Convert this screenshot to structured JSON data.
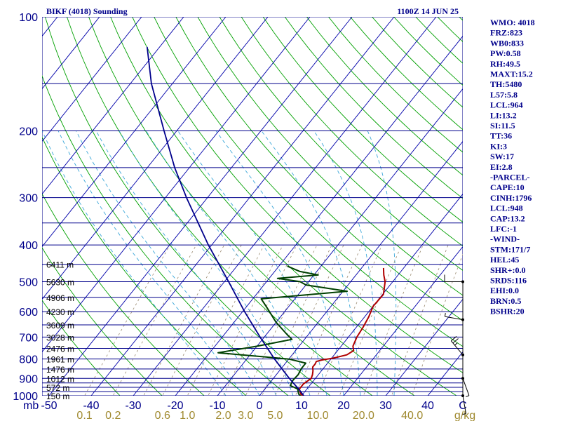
{
  "header": {
    "station": "BIKF (4018) Sounding",
    "time": "1100Z 14 JUN 25"
  },
  "indices": [
    "WMO: 4018",
    "FRZ:823",
    "WB0:833",
    "PW:0.58",
    "RH:49.5",
    "MAXT:15.2",
    "TH:5480",
    "L57:5.8",
    "LCL:964",
    "LI:13.2",
    "SI:11.5",
    "TT:36",
    "KI:3",
    "SW:17",
    "EI:2.8",
    "-PARCEL-",
    "CAPE:10",
    "CINH:1796",
    "LCL:948",
    "CAP:13.2",
    "LFC:-1",
    "-WIND-",
    "STM:171/7",
    "HEL:45",
    "SHR+:0.0",
    "SRDS:116",
    "EHI:0.0",
    "BRN:0.5",
    "BSHR:20"
  ],
  "colors": {
    "isobar": "#00008b",
    "isotherm": "#0000aa",
    "dry_adiabat": "#00a000",
    "moist_adiabat": "#3aa6d8",
    "mixing_ratio": "#9a8a70",
    "temperature": "#b00000",
    "dewpoint": "#004000",
    "parcel": "#00008b",
    "wind": "#000000",
    "text": "#00008b",
    "mix_label": "#a08a30"
  },
  "chart_data": {
    "type": "line",
    "title": "BIKF (4018) Sounding",
    "pressure_axis": {
      "unit_label": "mb",
      "range": [
        1000,
        100
      ],
      "ticks": [
        {
          "value": 100,
          "label": "100"
        },
        {
          "value": 200,
          "label": "200"
        },
        {
          "value": 300,
          "label": "300"
        },
        {
          "value": 400,
          "label": "400"
        },
        {
          "value": 500,
          "label": "500"
        },
        {
          "value": 600,
          "label": "600"
        },
        {
          "value": 700,
          "label": "700"
        },
        {
          "value": 800,
          "label": "800"
        },
        {
          "value": 900,
          "label": "900"
        },
        {
          "value": 1000,
          "label": "1000"
        }
      ],
      "isobars": [
        100,
        150,
        200,
        250,
        300,
        350,
        400,
        450,
        500,
        550,
        600,
        650,
        700,
        750,
        800,
        850,
        900,
        925,
        950,
        975,
        1000
      ]
    },
    "temperature_axis": {
      "ticks": [
        {
          "value": -50,
          "label": "-50"
        },
        {
          "value": -40,
          "label": "-40"
        },
        {
          "value": -30,
          "label": "-30"
        },
        {
          "value": -20,
          "label": "-20"
        },
        {
          "value": -10,
          "label": "-10"
        },
        {
          "value": 0,
          "label": "0"
        },
        {
          "value": 10,
          "label": "10"
        },
        {
          "value": 20,
          "label": "20"
        },
        {
          "value": 30,
          "label": "30"
        },
        {
          "value": 40,
          "label": "40"
        }
      ],
      "end_label": "C"
    },
    "mixing_ratio_axis": {
      "ticks": [
        {
          "value": 0.1,
          "label": "0.1"
        },
        {
          "value": 0.2,
          "label": "0.2"
        },
        {
          "value": 0.6,
          "label": "0.6"
        },
        {
          "value": 1.0,
          "label": "1.0"
        },
        {
          "value": 2.0,
          "label": "2.0"
        },
        {
          "value": 3.0,
          "label": "3.0"
        },
        {
          "value": 5.0,
          "label": "5.0"
        },
        {
          "value": 10.0,
          "label": "10.0"
        },
        {
          "value": 20.0,
          "label": "20.0"
        },
        {
          "value": 40.0,
          "label": "40.0"
        }
      ],
      "unit_label": "g/kg"
    },
    "height_labels": [
      {
        "pressure": 450,
        "label": "6411 m"
      },
      {
        "pressure": 500,
        "label": "5630 m"
      },
      {
        "pressure": 550,
        "label": "4906 m"
      },
      {
        "pressure": 600,
        "label": "4230 m"
      },
      {
        "pressure": 650,
        "label": "3609 m"
      },
      {
        "pressure": 700,
        "label": "3028 m"
      },
      {
        "pressure": 750,
        "label": "2476 m"
      },
      {
        "pressure": 800,
        "label": "1961 m"
      },
      {
        "pressure": 850,
        "label": "1476 m"
      },
      {
        "pressure": 900,
        "label": "1012 m"
      },
      {
        "pressure": 950,
        "label": "572 m"
      },
      {
        "pressure": 1000,
        "label": "150 m"
      }
    ],
    "series": [
      {
        "key": "temperature",
        "points": [
          [
            1011,
            11.2
          ],
          [
            990,
            9.5
          ],
          [
            960,
            8.2
          ],
          [
            930,
            8.2
          ],
          [
            900,
            9.0
          ],
          [
            880,
            8.6
          ],
          [
            860,
            8.0
          ],
          [
            840,
            7.2
          ],
          [
            825,
            7.2
          ],
          [
            812,
            7.0
          ],
          [
            805,
            8.0
          ],
          [
            795,
            10.5
          ],
          [
            780,
            13.0
          ],
          [
            760,
            13.8
          ],
          [
            740,
            12.8
          ],
          [
            700,
            12.0
          ],
          [
            660,
            11.6
          ],
          [
            620,
            11.0
          ],
          [
            580,
            10.0
          ],
          [
            540,
            10.2
          ],
          [
            500,
            8.2
          ],
          [
            480,
            6.6
          ],
          [
            460,
            5.2
          ]
        ]
      },
      {
        "key": "dewpoint",
        "points": [
          [
            1011,
            10.5
          ],
          [
            990,
            9.0
          ],
          [
            960,
            7.8
          ],
          [
            940,
            5.4
          ],
          [
            910,
            5.0
          ],
          [
            880,
            5.2
          ],
          [
            850,
            4.8
          ],
          [
            820,
            4.8
          ],
          [
            800,
            0.0
          ],
          [
            780,
            -12.0
          ],
          [
            770,
            -18.0
          ],
          [
            740,
            -10.0
          ],
          [
            710,
            -3.0
          ],
          [
            690,
            -5.0
          ],
          [
            640,
            -10.0
          ],
          [
            585,
            -15.0
          ],
          [
            555,
            -18.0
          ],
          [
            530,
            1.0
          ],
          [
            510,
            -10.0
          ],
          [
            500,
            -12.0
          ],
          [
            490,
            -18.0
          ],
          [
            480,
            -9.0
          ],
          [
            470,
            -14.0
          ],
          [
            455,
            -18.0
          ]
        ]
      },
      {
        "key": "parcel",
        "points": [
          [
            1011,
            11.2
          ],
          [
            964,
            8.3
          ],
          [
            900,
            3.8
          ],
          [
            850,
            0.3
          ],
          [
            800,
            -3.4
          ],
          [
            700,
            -11.0
          ],
          [
            600,
            -19.5
          ],
          [
            500,
            -29.0
          ],
          [
            400,
            -40.8
          ],
          [
            300,
            -55.0
          ],
          [
            250,
            -63.5
          ],
          [
            200,
            -73.0
          ],
          [
            150,
            -85.0
          ],
          [
            120,
            -93.0
          ]
        ]
      }
    ],
    "wind_barbs": [
      {
        "pressure": 1000,
        "direction": 170,
        "speed": 5
      },
      {
        "pressure": 900,
        "direction": 160,
        "speed": 5
      },
      {
        "pressure": 780,
        "direction": 320,
        "speed": 25
      },
      {
        "pressure": 630,
        "direction": 280,
        "speed": 5
      },
      {
        "pressure": 500,
        "direction": 270,
        "speed": 10
      }
    ]
  }
}
